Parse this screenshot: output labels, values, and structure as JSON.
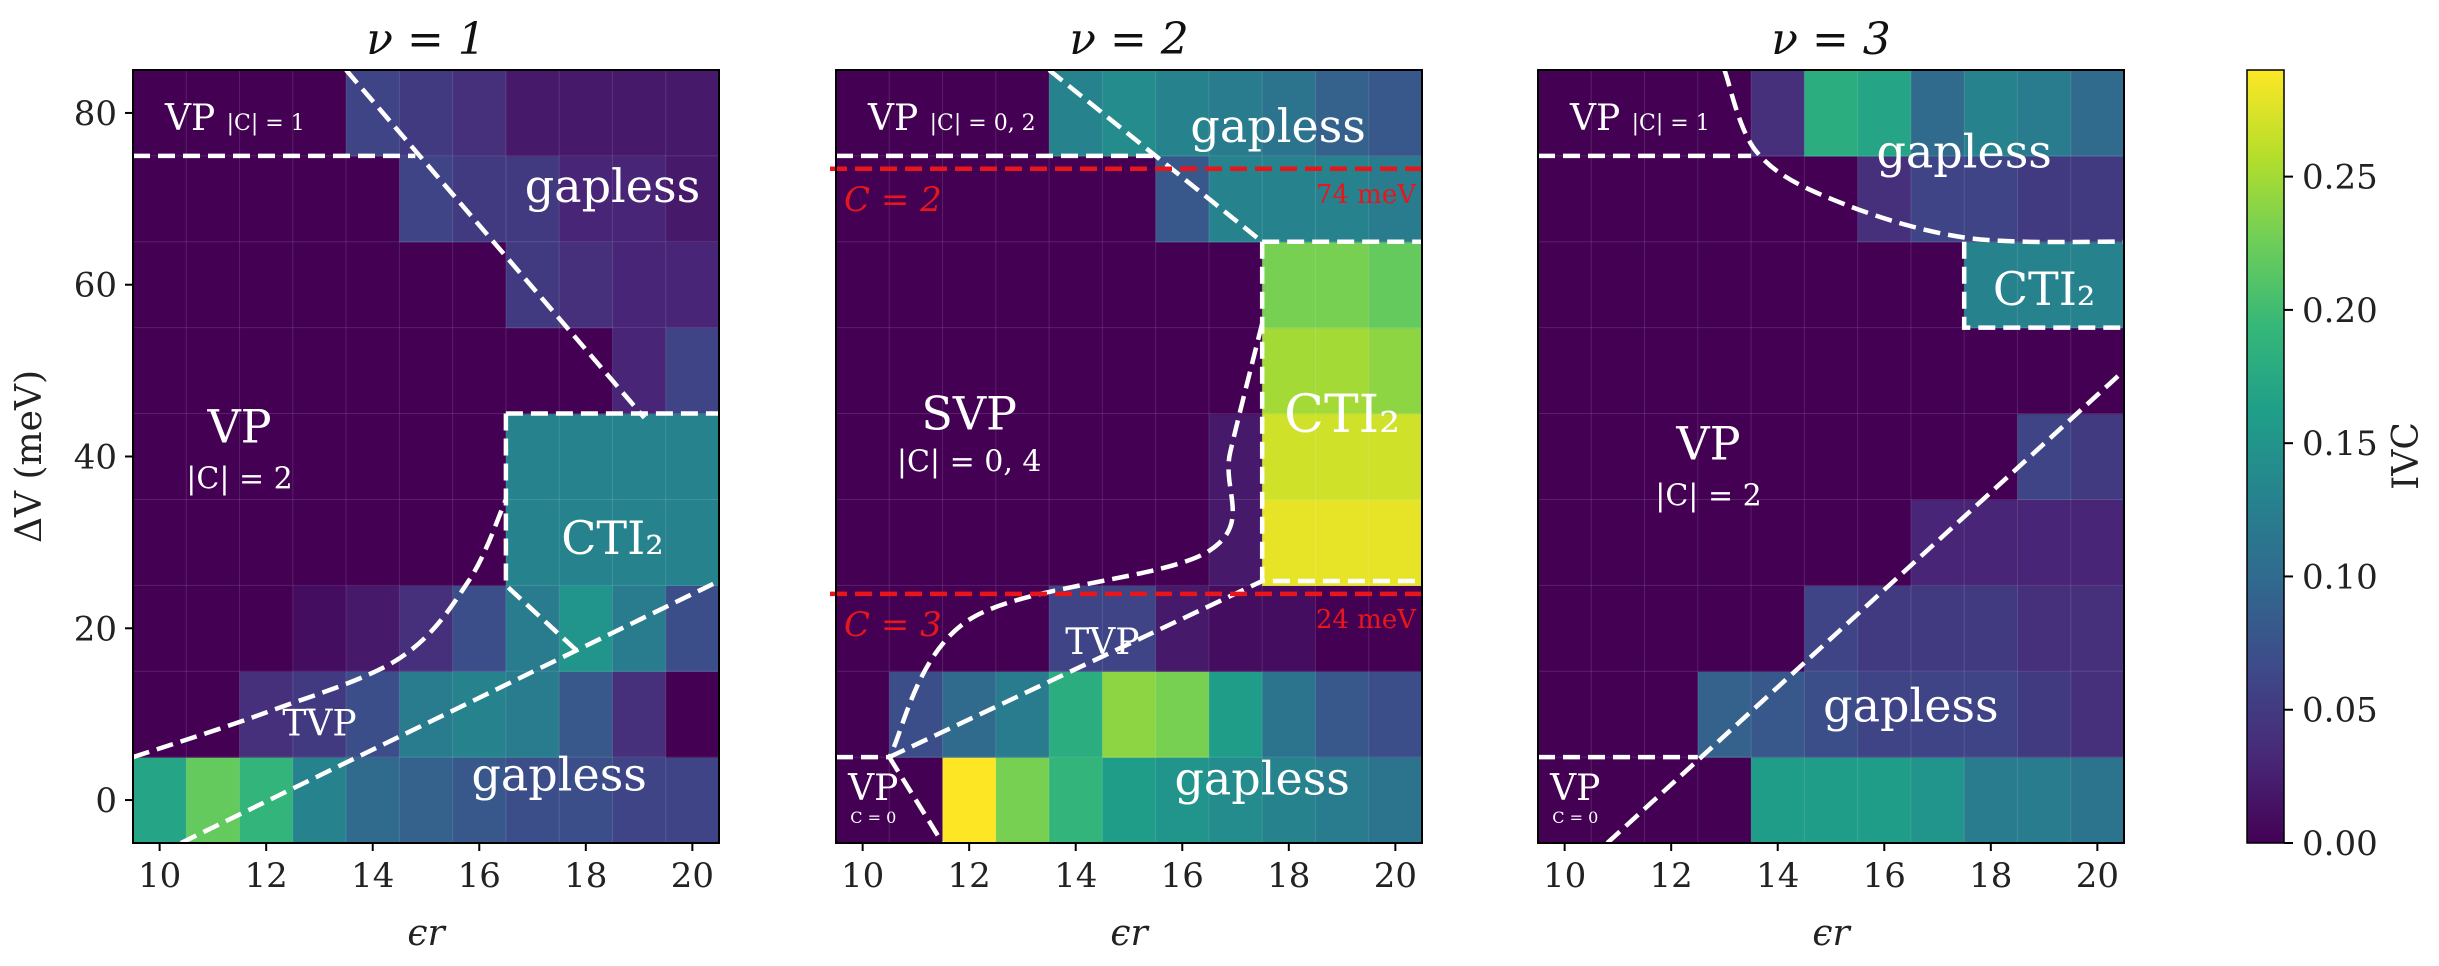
{
  "chart_data": [
    {
      "type": "heatmap",
      "title": "ν = 1",
      "xlabel": "ϵr",
      "ylabel": "ΔV (meV)",
      "x_ticks": [
        10,
        12,
        14,
        16,
        18,
        20
      ],
      "y_ticks": [
        0,
        20,
        40,
        60,
        80
      ],
      "xlim": [
        9.5,
        20.5
      ],
      "ylim": [
        -5,
        85
      ],
      "x": [
        10,
        11,
        12,
        13,
        14,
        15,
        16,
        17,
        18,
        19,
        20
      ],
      "y": [
        0,
        10,
        20,
        30,
        40,
        50,
        60,
        70,
        80
      ],
      "z": [
        [
          0.17,
          0.22,
          0.19,
          0.13,
          0.1,
          0.09,
          0.08,
          0.07,
          0.07,
          0.06,
          0.06
        ],
        [
          0.0,
          0.0,
          0.04,
          0.05,
          0.07,
          0.12,
          0.13,
          0.12,
          0.08,
          0.04,
          0.0
        ],
        [
          0.0,
          0.0,
          0.0,
          0.01,
          0.02,
          0.04,
          0.07,
          0.12,
          0.15,
          0.12,
          0.07
        ],
        [
          0.0,
          0.0,
          0.0,
          0.0,
          0.0,
          0.0,
          0.0,
          0.13,
          0.13,
          0.13,
          0.13
        ],
        [
          0.0,
          0.0,
          0.0,
          0.0,
          0.0,
          0.0,
          0.0,
          0.13,
          0.13,
          0.13,
          0.13
        ],
        [
          0.0,
          0.0,
          0.0,
          0.0,
          0.0,
          0.0,
          0.0,
          0.0,
          0.0,
          0.03,
          0.06
        ],
        [
          0.0,
          0.0,
          0.0,
          0.0,
          0.0,
          0.0,
          0.0,
          0.05,
          0.04,
          0.03,
          0.03
        ],
        [
          0.0,
          0.0,
          0.0,
          0.0,
          0.0,
          0.06,
          0.05,
          0.05,
          0.03,
          0.03,
          0.02
        ],
        [
          0.0,
          0.0,
          0.0,
          0.0,
          0.06,
          0.05,
          0.04,
          0.02,
          0.02,
          0.02,
          0.02
        ]
      ],
      "annotations": [
        {
          "text": "VP",
          "sub": "|C| = 1",
          "x": 10.1,
          "y": 79.5,
          "size": "medium"
        },
        {
          "text": "gapless",
          "x": 18.5,
          "y": 71.5,
          "size": "large"
        },
        {
          "text": "VP",
          "x": 11.5,
          "y": 43.5,
          "size": "large"
        },
        {
          "text": "|C| = 2",
          "x": 11.5,
          "y": 37.5,
          "size": "small"
        },
        {
          "text": "CTI₂",
          "x": 18.5,
          "y": 30.5,
          "size": "large"
        },
        {
          "text": "TVP",
          "x": 13.0,
          "y": 9.0,
          "size": "medium"
        },
        {
          "text": "gapless",
          "x": 17.5,
          "y": 3.0,
          "size": "large"
        }
      ],
      "boundaries": [
        {
          "style": "dashed",
          "points": [
            [
              9.5,
              75
            ],
            [
              14.8,
              75
            ]
          ]
        },
        {
          "style": "dashed",
          "points": [
            [
              13.5,
              85
            ],
            [
              19.1,
              44.5
            ]
          ]
        },
        {
          "style": "dashed",
          "points": [
            [
              16.5,
              45
            ],
            [
              20.5,
              45
            ]
          ]
        },
        {
          "style": "dashed",
          "points": [
            [
              16.5,
              45
            ],
            [
              16.5,
              25
            ],
            [
              17.9,
              17
            ]
          ]
        },
        {
          "style": "dashed",
          "points": [
            [
              10.4,
              -5
            ],
            [
              20.5,
              25.5
            ]
          ]
        },
        {
          "style": "dashed",
          "curve": true,
          "points": [
            [
              9.5,
              5
            ],
            [
              12.0,
              10.2
            ],
            [
              14.5,
              16.5
            ],
            [
              15.8,
              25.5
            ],
            [
              16.5,
              35
            ]
          ]
        }
      ]
    },
    {
      "type": "heatmap",
      "title": "ν = 2",
      "xlabel": "ϵr",
      "ylabel": "",
      "x_ticks": [
        10,
        12,
        14,
        16,
        18,
        20
      ],
      "xlim": [
        9.5,
        20.5
      ],
      "ylim": [
        -5,
        85
      ],
      "x": [
        10,
        11,
        12,
        13,
        14,
        15,
        16,
        17,
        18,
        19,
        20
      ],
      "y": [
        0,
        10,
        20,
        30,
        40,
        50,
        60,
        70,
        80
      ],
      "z": [
        [
          0.0,
          0.0,
          0.29,
          0.23,
          0.19,
          0.16,
          0.15,
          0.14,
          0.13,
          0.12,
          0.11
        ],
        [
          0.0,
          0.07,
          0.1,
          0.12,
          0.18,
          0.24,
          0.23,
          0.16,
          0.11,
          0.08,
          0.07
        ],
        [
          0.0,
          0.0,
          0.0,
          0.0,
          0.06,
          0.06,
          0.02,
          0.01,
          0.01,
          0.0,
          0.0
        ],
        [
          0.0,
          0.0,
          0.0,
          0.0,
          0.0,
          0.0,
          0.0,
          0.02,
          0.28,
          0.28,
          0.28
        ],
        [
          0.0,
          0.0,
          0.0,
          0.0,
          0.0,
          0.0,
          0.0,
          0.02,
          0.27,
          0.27,
          0.27
        ],
        [
          0.0,
          0.0,
          0.0,
          0.0,
          0.0,
          0.0,
          0.0,
          0.0,
          0.25,
          0.25,
          0.24
        ],
        [
          0.0,
          0.0,
          0.0,
          0.0,
          0.0,
          0.0,
          0.0,
          0.0,
          0.23,
          0.23,
          0.22
        ],
        [
          0.0,
          0.0,
          0.0,
          0.0,
          0.0,
          0.0,
          0.08,
          0.13,
          0.13,
          0.13,
          0.12
        ],
        [
          0.0,
          0.0,
          0.0,
          0.0,
          0.13,
          0.14,
          0.13,
          0.12,
          0.11,
          0.09,
          0.08
        ]
      ],
      "reference_lines": [
        {
          "y": 73.5,
          "label": "74 meV",
          "region_label": "C = 2",
          "color": "#e8161b"
        },
        {
          "y": 24,
          "label": "24 meV",
          "region_label": "C = 3",
          "color": "#e8161b"
        }
      ],
      "annotations": [
        {
          "text": "VP",
          "sub": "|C| = 0, 2",
          "x": 10.1,
          "y": 79.5,
          "size": "medium"
        },
        {
          "text": "gapless",
          "x": 17.8,
          "y": 78.5,
          "size": "large"
        },
        {
          "text": "SVP",
          "x": 12.0,
          "y": 45.0,
          "size": "large"
        },
        {
          "text": "|C| = 0, 4",
          "x": 12.0,
          "y": 39.5,
          "size": "small"
        },
        {
          "text": "CTI₂",
          "x": 19.0,
          "y": 45.0,
          "size": "xlarge"
        },
        {
          "text": "TVP",
          "x": 14.5,
          "y": 18.5,
          "size": "medium"
        },
        {
          "text": "gapless",
          "x": 17.5,
          "y": 2.5,
          "size": "large"
        },
        {
          "text": "VP",
          "x": 10.2,
          "y": 1.5,
          "size": "medium"
        },
        {
          "text": "C = 0",
          "x": 10.2,
          "y": -2.0,
          "size": "tiny"
        }
      ],
      "boundaries": [
        {
          "style": "dashed",
          "points": [
            [
              9.5,
              75
            ],
            [
              15.5,
              75
            ]
          ]
        },
        {
          "style": "dashed",
          "points": [
            [
              13.5,
              85
            ],
            [
              17.5,
              65
            ]
          ]
        },
        {
          "style": "dashed",
          "points": [
            [
              17.5,
              65
            ],
            [
              20.5,
              65
            ]
          ]
        },
        {
          "style": "dashed",
          "points": [
            [
              17.5,
              65
            ],
            [
              17.5,
              25.5
            ],
            [
              20.5,
              25.5
            ]
          ]
        },
        {
          "style": "dashed",
          "curve": true,
          "points": [
            [
              17.5,
              55.5
            ],
            [
              16.9,
              40.5
            ],
            [
              16.5,
              29
            ],
            [
              12.0,
              21
            ],
            [
              10.5,
              5
            ]
          ]
        },
        {
          "style": "dashed",
          "points": [
            [
              10.5,
              5
            ],
            [
              17.5,
              25.5
            ]
          ]
        },
        {
          "style": "dashed",
          "points": [
            [
              9.5,
              5
            ],
            [
              10.5,
              5
            ]
          ]
        },
        {
          "style": "dashed",
          "points": [
            [
              10.5,
              5
            ],
            [
              11.5,
              -5
            ]
          ]
        }
      ]
    },
    {
      "type": "heatmap",
      "title": "ν = 3",
      "xlabel": "ϵr",
      "ylabel": "",
      "x_ticks": [
        10,
        12,
        14,
        16,
        18,
        20
      ],
      "xlim": [
        9.5,
        20.5
      ],
      "ylim": [
        -5,
        85
      ],
      "x": [
        10,
        11,
        12,
        13,
        14,
        15,
        16,
        17,
        18,
        19,
        20
      ],
      "y": [
        0,
        10,
        20,
        30,
        40,
        50,
        60,
        70,
        80
      ],
      "z": [
        [
          0.0,
          0.0,
          0.0,
          0.0,
          0.16,
          0.16,
          0.16,
          0.15,
          0.12,
          0.12,
          0.11
        ],
        [
          0.0,
          0.0,
          0.0,
          0.09,
          0.08,
          0.07,
          0.06,
          0.06,
          0.06,
          0.05,
          0.04
        ],
        [
          0.0,
          0.0,
          0.0,
          0.0,
          0.0,
          0.06,
          0.05,
          0.05,
          0.05,
          0.04,
          0.04
        ],
        [
          0.0,
          0.0,
          0.0,
          0.0,
          0.0,
          0.0,
          0.0,
          0.03,
          0.03,
          0.03,
          0.03
        ],
        [
          0.0,
          0.0,
          0.0,
          0.0,
          0.0,
          0.0,
          0.0,
          0.0,
          0.0,
          0.06,
          0.05
        ],
        [
          0.0,
          0.0,
          0.0,
          0.0,
          0.0,
          0.0,
          0.0,
          0.0,
          0.0,
          0.0,
          0.0
        ],
        [
          0.0,
          0.0,
          0.0,
          0.0,
          0.0,
          0.0,
          0.0,
          0.0,
          0.13,
          0.13,
          0.13
        ],
        [
          0.0,
          0.0,
          0.0,
          0.0,
          0.0,
          0.0,
          0.04,
          0.06,
          0.06,
          0.05,
          0.05
        ],
        [
          0.0,
          0.0,
          0.0,
          0.0,
          0.04,
          0.18,
          0.17,
          0.1,
          0.13,
          0.12,
          0.1
        ]
      ],
      "annotations": [
        {
          "text": "VP",
          "sub": "|C| = 1",
          "x": 10.1,
          "y": 79.5,
          "size": "medium"
        },
        {
          "text": "gapless",
          "x": 17.5,
          "y": 75.5,
          "size": "large"
        },
        {
          "text": "CTI₂",
          "x": 19.0,
          "y": 59.5,
          "size": "large"
        },
        {
          "text": "VP",
          "x": 12.7,
          "y": 41.5,
          "size": "large"
        },
        {
          "text": "|C| = 2",
          "x": 12.7,
          "y": 35.5,
          "size": "small"
        },
        {
          "text": "gapless",
          "x": 16.5,
          "y": 11.0,
          "size": "large"
        },
        {
          "text": "VP",
          "x": 10.2,
          "y": 1.5,
          "size": "medium"
        },
        {
          "text": "C = 0",
          "x": 10.2,
          "y": -2.0,
          "size": "tiny"
        }
      ],
      "boundaries": [
        {
          "style": "dashed",
          "points": [
            [
              9.5,
              75
            ],
            [
              13.5,
              75
            ]
          ]
        },
        {
          "style": "dashed",
          "curve": true,
          "points": [
            [
              13.0,
              85
            ],
            [
              13.6,
              75.5
            ],
            [
              15.0,
              70.0
            ],
            [
              17.5,
              65.5
            ],
            [
              20.5,
              65
            ]
          ]
        },
        {
          "style": "dashed",
          "points": [
            [
              17.5,
              65
            ],
            [
              17.5,
              55
            ],
            [
              20.5,
              55
            ]
          ]
        },
        {
          "style": "dashed",
          "points": [
            [
              10.8,
              -5
            ],
            [
              20.5,
              50
            ]
          ]
        },
        {
          "style": "dashed",
          "points": [
            [
              9.5,
              5
            ],
            [
              12.5,
              5
            ]
          ]
        }
      ]
    }
  ],
  "colorbar": {
    "label": "IVC",
    "range": [
      0,
      0.29
    ],
    "colormap": "viridis",
    "ticks": [
      0,
      0.05,
      0.1,
      0.15,
      0.2,
      0.25
    ],
    "tick_labels": [
      "0.00",
      "0.05",
      "0.10",
      "0.15",
      "0.20",
      "0.25"
    ]
  },
  "colors": {
    "boundary": "#ffffff",
    "reference": "#e8161b",
    "grid": "#ffffff"
  }
}
